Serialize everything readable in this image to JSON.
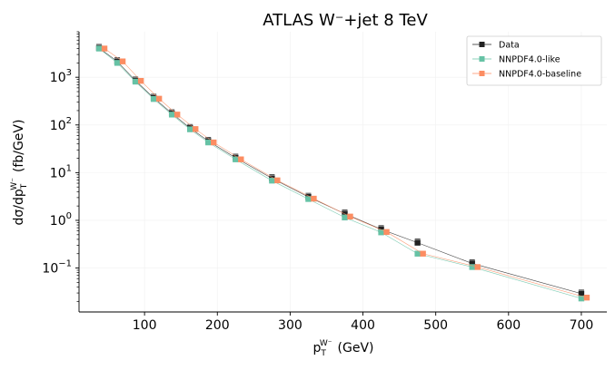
{
  "chart_data": {
    "type": "scatter",
    "title": "ATLAS W⁻+jet 8 TeV",
    "xlabel": {
      "main": "p",
      "sub": "T",
      "sup": "W⁻",
      "unit": "(GeV)"
    },
    "ylabel": {
      "pre": "dσ/dp",
      "sub": "T",
      "sup": "W⁻",
      "unit": "(fb/GeV)"
    },
    "x_ticks": [
      "100",
      "200",
      "300",
      "400",
      "500",
      "600",
      "700"
    ],
    "y_ticks": [
      {
        "mant": "10",
        "exp": "−1"
      },
      {
        "mant": "10",
        "exp": "0"
      },
      {
        "mant": "10",
        "exp": "1"
      },
      {
        "mant": "10",
        "exp": "2"
      },
      {
        "mant": "10",
        "exp": "3"
      }
    ],
    "xlim": [
      10,
      735
    ],
    "ylim": [
      0.012,
      9000
    ],
    "y_scale": "log",
    "grid": true,
    "legend_position": "top-right",
    "series": [
      {
        "name": "Data",
        "color": "#222222",
        "x_offset": 0,
        "x": [
          37.5,
          62.5,
          87.5,
          112.5,
          137.5,
          162.5,
          187.5,
          225,
          275,
          325,
          375,
          425,
          475,
          550,
          700
        ],
        "y": [
          4100,
          2150,
          850,
          370,
          175,
          86,
          46,
          20.5,
          7.6,
          3.1,
          1.38,
          0.65,
          0.34,
          0.125,
          0.029
        ]
      },
      {
        "name": "NNPDF4.0-like",
        "color": "#66c2a5",
        "x_offset": 0,
        "x": [
          37.5,
          62.5,
          87.5,
          112.5,
          137.5,
          162.5,
          187.5,
          225,
          275,
          325,
          375,
          425,
          475,
          550,
          700
        ],
        "y": [
          4000,
          2000,
          810,
          350,
          165,
          81,
          43,
          19.0,
          6.8,
          2.8,
          1.15,
          0.56,
          0.2,
          0.105,
          0.023
        ]
      },
      {
        "name": "NNPDF4.0-baseline",
        "color": "#fc8d62",
        "x_offset": 6,
        "x": [
          37.5,
          62.5,
          87.5,
          112.5,
          137.5,
          162.5,
          187.5,
          225,
          275,
          325,
          375,
          425,
          475,
          550,
          700
        ],
        "y": [
          4000,
          2150,
          840,
          355,
          165,
          82,
          43,
          19.0,
          6.9,
          2.85,
          1.2,
          0.57,
          0.2,
          0.105,
          0.024
        ]
      }
    ]
  }
}
